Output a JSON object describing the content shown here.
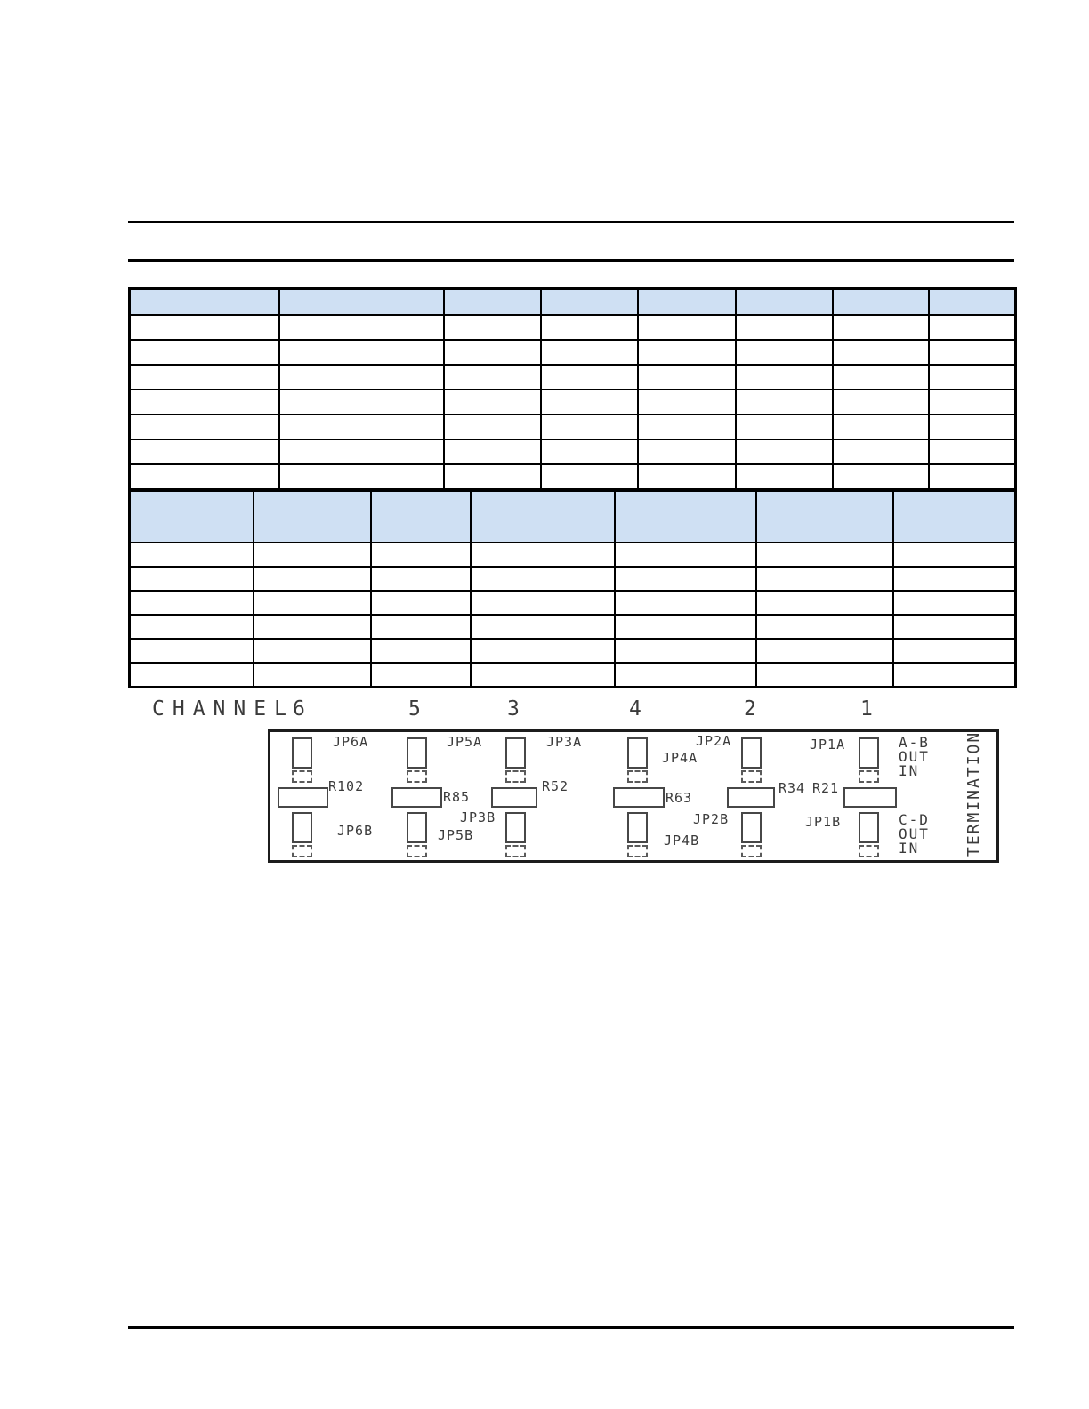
{
  "colors": {
    "header_bg": "#cfe0f3",
    "line": "#000000",
    "diagram_ink": "#3b3b3b"
  },
  "table1": {
    "headers": [
      "",
      "",
      "",
      "",
      "",
      "",
      "",
      ""
    ],
    "rows": [
      [
        "",
        "",
        "",
        "",
        "",
        "",
        "",
        ""
      ],
      [
        "",
        "",
        "",
        "",
        "",
        "",
        "",
        ""
      ],
      [
        "",
        "",
        "",
        "",
        "",
        "",
        "",
        ""
      ],
      [
        "",
        "",
        "",
        "",
        "",
        "",
        "",
        ""
      ],
      [
        "",
        "",
        "",
        "",
        "",
        "",
        "",
        ""
      ],
      [
        "",
        "",
        "",
        "",
        "",
        "",
        "",
        ""
      ],
      [
        "",
        "",
        "",
        "",
        "",
        "",
        "",
        ""
      ]
    ]
  },
  "table2": {
    "headers": [
      "",
      "",
      "",
      "",
      "",
      "",
      ""
    ],
    "rows": [
      [
        "",
        "",
        "",
        "",
        "",
        "",
        ""
      ],
      [
        "",
        "",
        "",
        "",
        "",
        "",
        ""
      ],
      [
        "",
        "",
        "",
        "",
        "",
        "",
        ""
      ],
      [
        "",
        "",
        "",
        "",
        "",
        "",
        ""
      ],
      [
        "",
        "",
        "",
        "",
        "",
        "",
        ""
      ],
      [
        "",
        "",
        "",
        "",
        "",
        "",
        ""
      ]
    ]
  },
  "diagram": {
    "channel_word": "CHANNEL",
    "channels": [
      {
        "number": "6",
        "top_jumper": "JP6A",
        "resistor": "R102",
        "bottom_jumper": "JP6B"
      },
      {
        "number": "5",
        "top_jumper": "JP5A",
        "resistor": "R85",
        "bottom_jumper": "JP5B"
      },
      {
        "number": "3",
        "top_jumper": "JP3A",
        "resistor": "R52",
        "bottom_jumper": "JP3B"
      },
      {
        "number": "4",
        "top_jumper": "JP4A",
        "resistor": "R63",
        "bottom_jumper": "JP4B"
      },
      {
        "number": "2",
        "top_jumper": "JP2A",
        "resistor": "R34",
        "bottom_jumper": "JP2B"
      },
      {
        "number": "1",
        "top_jumper": "JP1A",
        "resistor": "R21",
        "bottom_jumper": "JP1B"
      }
    ],
    "termination_top": [
      "A-B",
      "OUT",
      "IN"
    ],
    "termination_bottom": [
      "C-D",
      "OUT",
      "IN"
    ],
    "termination_side": "TERMINATION"
  }
}
